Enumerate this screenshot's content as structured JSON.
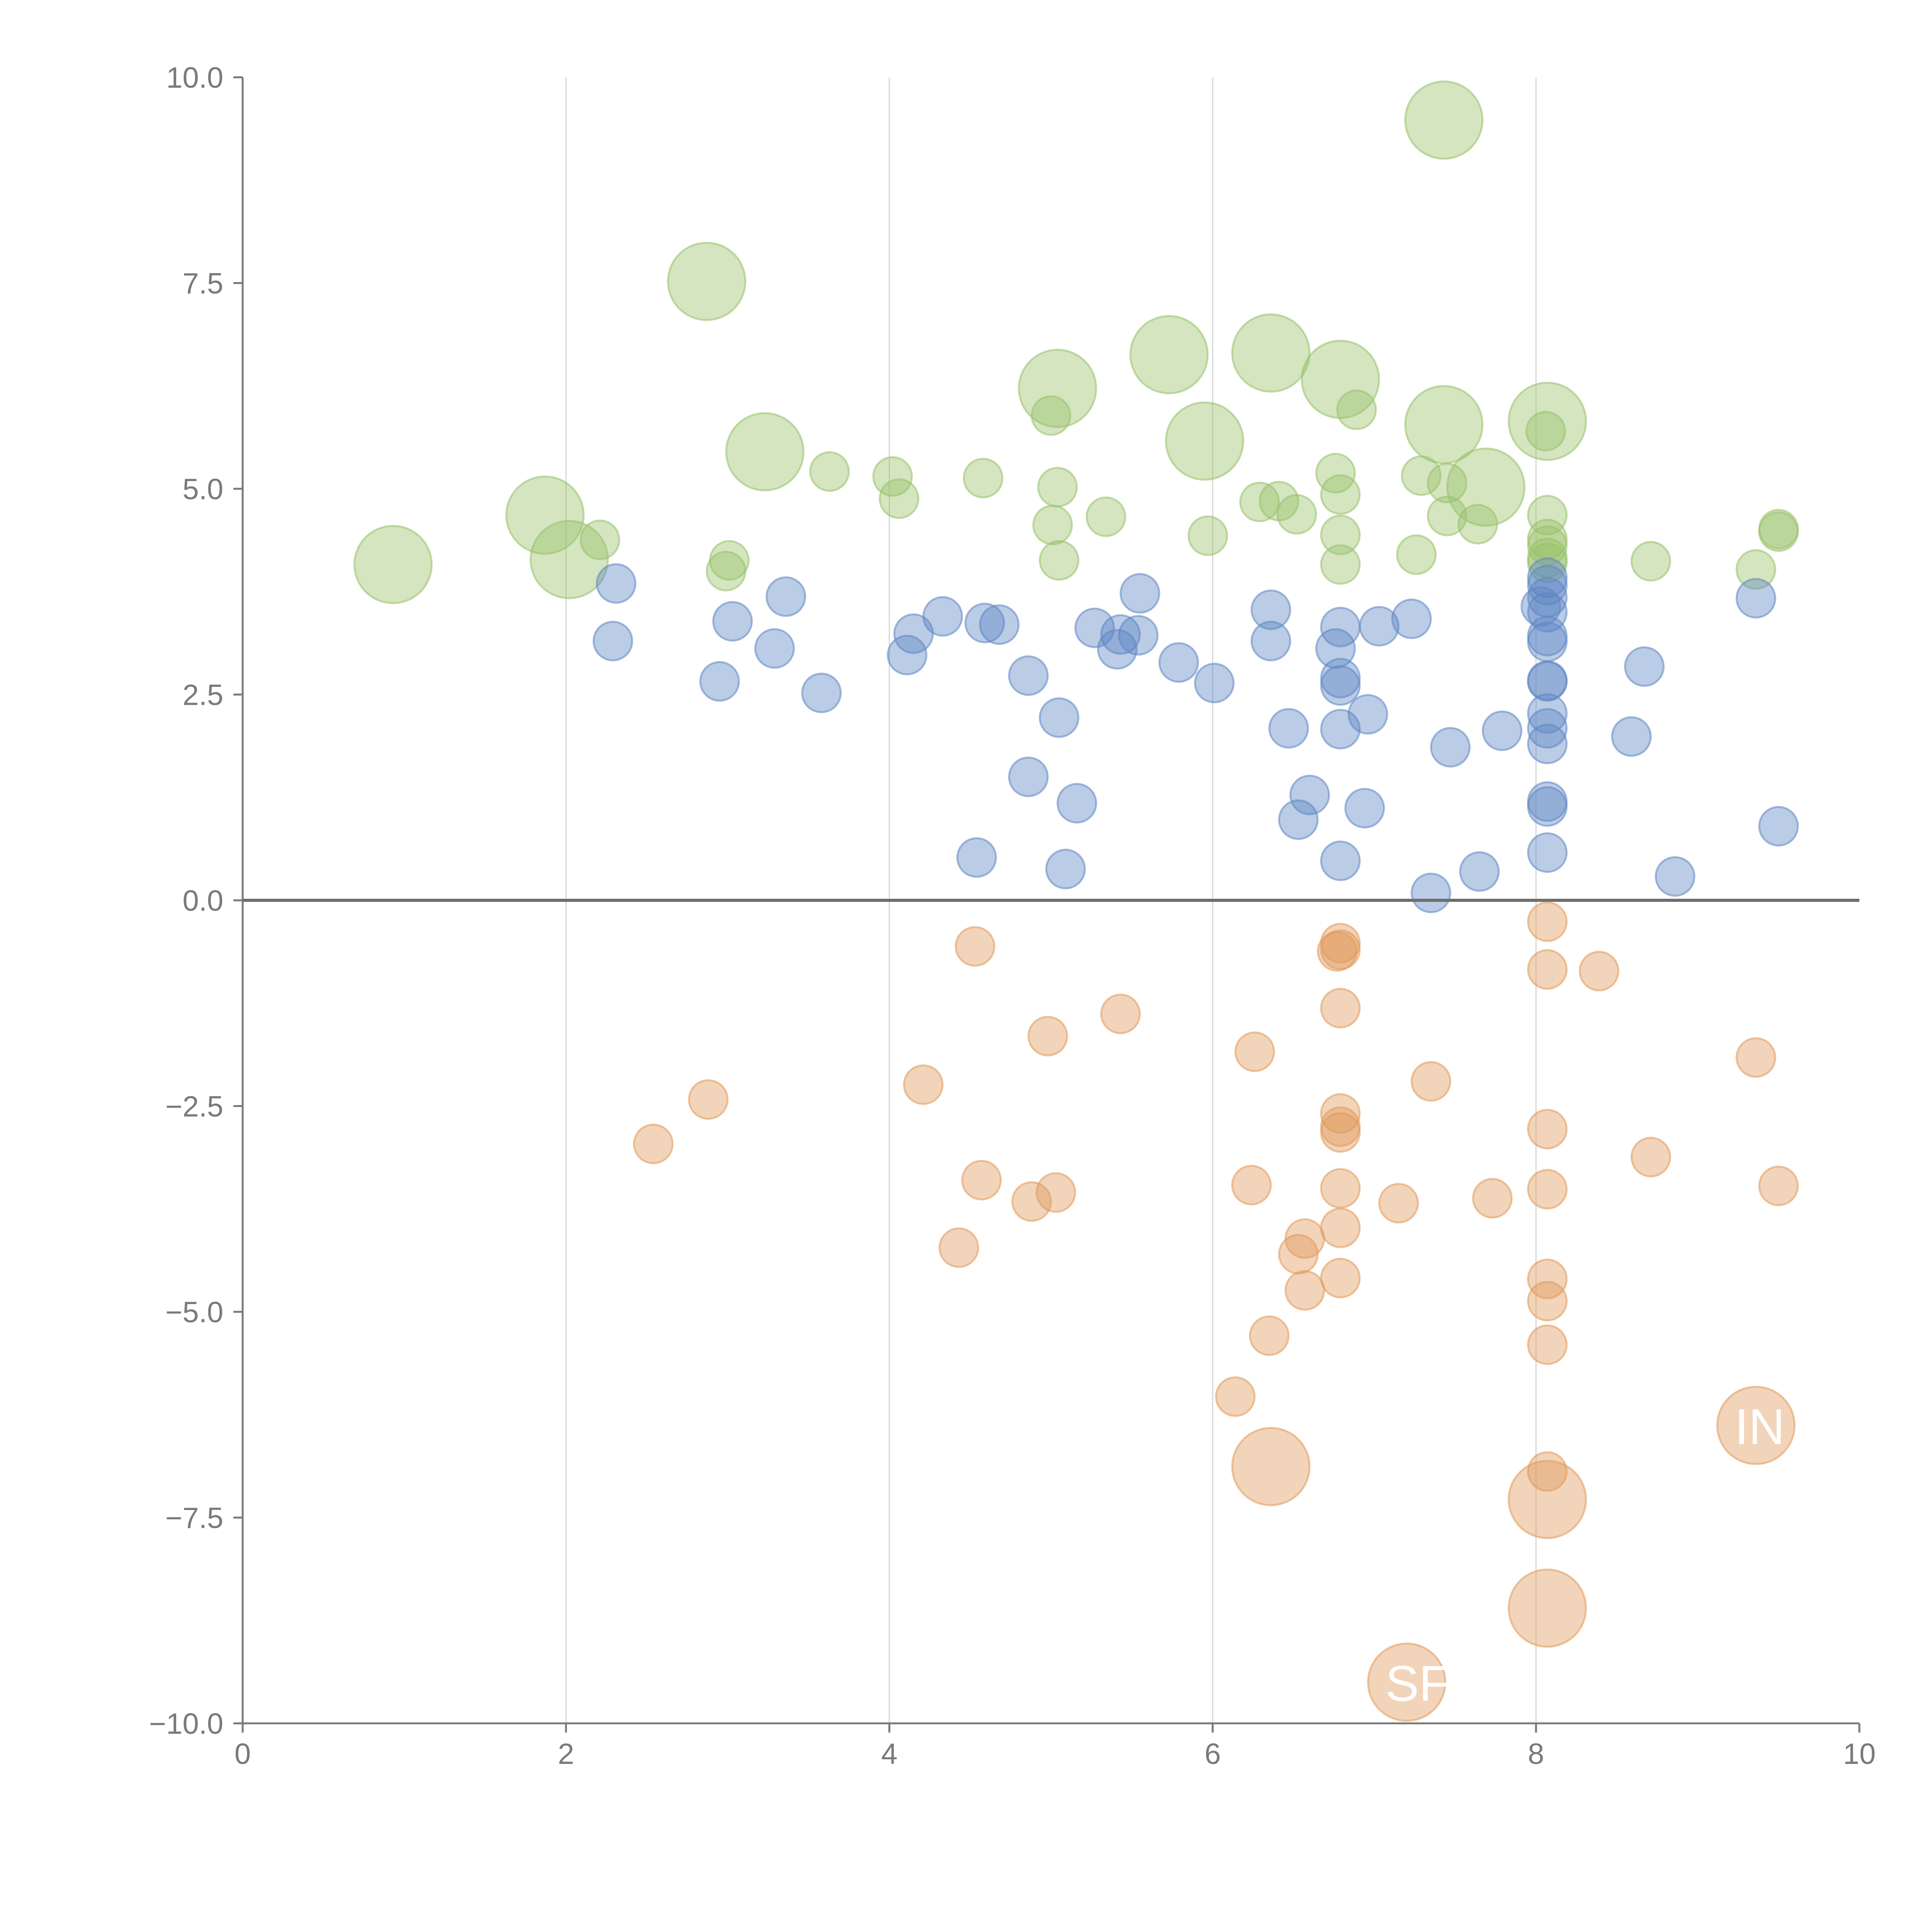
{
  "chart_data": {
    "type": "scatter",
    "title": "",
    "xlabel": "",
    "ylabel": "",
    "xlim": [
      0,
      10
    ],
    "ylim": [
      -10,
      10
    ],
    "x_ticks": [
      "0",
      "2",
      "4",
      "6",
      "8",
      "10"
    ],
    "y_ticks": [
      "10.0",
      "7.5",
      "5.0",
      "2.5",
      "0.0",
      "−2.5",
      "−5.0",
      "−7.5",
      "−10.0"
    ],
    "grid": "vertical",
    "colors": {
      "green": "#98c16a",
      "blue": "#5e86c3",
      "orange": "#e1995a",
      "axis": "#7a7a7a",
      "zero_line": "#6e6e6e",
      "grid": "#d6d6d6"
    },
    "series": [
      {
        "name": "green",
        "points": [
          {
            "x": 0.93,
            "y": 4.08,
            "s": "big"
          },
          {
            "x": 1.87,
            "y": 4.68,
            "s": "big"
          },
          {
            "x": 2.02,
            "y": 4.14,
            "s": "big"
          },
          {
            "x": 2.87,
            "y": 7.52,
            "s": "big"
          },
          {
            "x": 3.23,
            "y": 5.45,
            "s": "big"
          },
          {
            "x": 5.04,
            "y": 6.22,
            "s": "big"
          },
          {
            "x": 5.73,
            "y": 6.63,
            "s": "big"
          },
          {
            "x": 5.95,
            "y": 5.58,
            "s": "big"
          },
          {
            "x": 6.36,
            "y": 6.65,
            "s": "big"
          },
          {
            "x": 6.79,
            "y": 6.33,
            "s": "big"
          },
          {
            "x": 7.43,
            "y": 9.48,
            "s": "big"
          },
          {
            "x": 7.43,
            "y": 5.78,
            "s": "big"
          },
          {
            "x": 7.69,
            "y": 5.02,
            "s": "big"
          },
          {
            "x": 8.07,
            "y": 5.82,
            "s": "big"
          },
          {
            "x": 2.21,
            "y": 4.38
          },
          {
            "x": 2.99,
            "y": 4.0
          },
          {
            "x": 3.01,
            "y": 4.13
          },
          {
            "x": 3.63,
            "y": 5.21
          },
          {
            "x": 4.02,
            "y": 5.15
          },
          {
            "x": 4.06,
            "y": 4.88
          },
          {
            "x": 4.58,
            "y": 5.13
          },
          {
            "x": 5.0,
            "y": 5.89
          },
          {
            "x": 5.04,
            "y": 5.02
          },
          {
            "x": 5.01,
            "y": 4.56
          },
          {
            "x": 5.05,
            "y": 4.13
          },
          {
            "x": 5.34,
            "y": 4.66
          },
          {
            "x": 5.97,
            "y": 4.43
          },
          {
            "x": 6.29,
            "y": 4.84
          },
          {
            "x": 6.41,
            "y": 4.85
          },
          {
            "x": 6.52,
            "y": 4.69
          },
          {
            "x": 6.76,
            "y": 5.19
          },
          {
            "x": 6.79,
            "y": 4.93
          },
          {
            "x": 6.79,
            "y": 4.44
          },
          {
            "x": 6.79,
            "y": 4.08
          },
          {
            "x": 6.89,
            "y": 5.96
          },
          {
            "x": 7.26,
            "y": 4.2
          },
          {
            "x": 7.29,
            "y": 5.16
          },
          {
            "x": 7.45,
            "y": 4.67
          },
          {
            "x": 7.45,
            "y": 5.07
          },
          {
            "x": 7.64,
            "y": 4.57
          },
          {
            "x": 8.06,
            "y": 5.7
          },
          {
            "x": 8.07,
            "y": 4.68
          },
          {
            "x": 8.07,
            "y": 4.39
          },
          {
            "x": 8.07,
            "y": 4.31
          },
          {
            "x": 8.07,
            "y": 4.16
          },
          {
            "x": 8.07,
            "y": 4.1
          },
          {
            "x": 8.71,
            "y": 4.12
          },
          {
            "x": 9.36,
            "y": 4.02
          },
          {
            "x": 9.5,
            "y": 4.48
          },
          {
            "x": 9.5,
            "y": 4.51
          }
        ]
      },
      {
        "name": "blue",
        "points": [
          {
            "x": 2.29,
            "y": 3.15
          },
          {
            "x": 2.31,
            "y": 3.85
          },
          {
            "x": 2.95,
            "y": 2.66
          },
          {
            "x": 3.03,
            "y": 3.39
          },
          {
            "x": 3.29,
            "y": 3.06
          },
          {
            "x": 3.36,
            "y": 3.69
          },
          {
            "x": 3.58,
            "y": 2.52
          },
          {
            "x": 4.11,
            "y": 2.98
          },
          {
            "x": 4.15,
            "y": 3.24
          },
          {
            "x": 4.33,
            "y": 3.45
          },
          {
            "x": 4.54,
            "y": 0.52
          },
          {
            "x": 4.59,
            "y": 3.37
          },
          {
            "x": 4.68,
            "y": 3.35
          },
          {
            "x": 4.86,
            "y": 2.73
          },
          {
            "x": 4.86,
            "y": 1.5
          },
          {
            "x": 5.05,
            "y": 2.22
          },
          {
            "x": 5.09,
            "y": 0.38
          },
          {
            "x": 5.16,
            "y": 1.18
          },
          {
            "x": 5.27,
            "y": 3.31
          },
          {
            "x": 5.41,
            "y": 3.05
          },
          {
            "x": 5.43,
            "y": 3.23
          },
          {
            "x": 5.54,
            "y": 3.22
          },
          {
            "x": 5.55,
            "y": 3.73
          },
          {
            "x": 5.79,
            "y": 2.89
          },
          {
            "x": 6.01,
            "y": 2.64
          },
          {
            "x": 6.36,
            "y": 3.53
          },
          {
            "x": 6.36,
            "y": 3.15
          },
          {
            "x": 6.47,
            "y": 2.09
          },
          {
            "x": 6.53,
            "y": 0.98
          },
          {
            "x": 6.6,
            "y": 1.28
          },
          {
            "x": 6.76,
            "y": 3.06
          },
          {
            "x": 6.79,
            "y": 3.32
          },
          {
            "x": 6.79,
            "y": 2.7
          },
          {
            "x": 6.79,
            "y": 2.61
          },
          {
            "x": 6.79,
            "y": 2.08
          },
          {
            "x": 6.79,
            "y": 0.48
          },
          {
            "x": 6.94,
            "y": 1.12
          },
          {
            "x": 6.96,
            "y": 2.26
          },
          {
            "x": 7.03,
            "y": 3.33
          },
          {
            "x": 7.23,
            "y": 3.42
          },
          {
            "x": 7.35,
            "y": 0.09
          },
          {
            "x": 7.47,
            "y": 1.86
          },
          {
            "x": 7.65,
            "y": 0.35
          },
          {
            "x": 7.79,
            "y": 2.06
          },
          {
            "x": 8.07,
            "y": 3.92
          },
          {
            "x": 8.07,
            "y": 3.83
          },
          {
            "x": 8.07,
            "y": 3.68
          },
          {
            "x": 8.03,
            "y": 3.57
          },
          {
            "x": 8.07,
            "y": 3.5
          },
          {
            "x": 8.07,
            "y": 3.21
          },
          {
            "x": 8.07,
            "y": 3.14
          },
          {
            "x": 8.07,
            "y": 2.67
          },
          {
            "x": 8.07,
            "y": 2.66
          },
          {
            "x": 8.07,
            "y": 2.27
          },
          {
            "x": 8.07,
            "y": 2.09
          },
          {
            "x": 8.07,
            "y": 1.9
          },
          {
            "x": 8.07,
            "y": 1.2
          },
          {
            "x": 8.07,
            "y": 1.14
          },
          {
            "x": 8.07,
            "y": 0.58
          },
          {
            "x": 8.59,
            "y": 1.99
          },
          {
            "x": 8.67,
            "y": 2.84
          },
          {
            "x": 8.86,
            "y": 0.29
          },
          {
            "x": 9.36,
            "y": 3.67
          },
          {
            "x": 9.5,
            "y": 0.9
          }
        ]
      },
      {
        "name": "orange",
        "points": [
          {
            "x": 2.54,
            "y": -2.96
          },
          {
            "x": 2.88,
            "y": -2.42
          },
          {
            "x": 4.21,
            "y": -2.24
          },
          {
            "x": 4.43,
            "y": -4.22
          },
          {
            "x": 4.53,
            "y": -0.56
          },
          {
            "x": 4.57,
            "y": -3.4
          },
          {
            "x": 4.88,
            "y": -3.66
          },
          {
            "x": 4.98,
            "y": -1.65
          },
          {
            "x": 5.03,
            "y": -3.55
          },
          {
            "x": 5.43,
            "y": -1.38
          },
          {
            "x": 6.14,
            "y": -6.03
          },
          {
            "x": 6.24,
            "y": -3.46
          },
          {
            "x": 6.26,
            "y": -1.84
          },
          {
            "x": 6.35,
            "y": -5.29
          },
          {
            "x": 6.53,
            "y": -4.3
          },
          {
            "x": 6.57,
            "y": -4.11
          },
          {
            "x": 6.57,
            "y": -4.74
          },
          {
            "x": 6.79,
            "y": -0.52
          },
          {
            "x": 6.77,
            "y": -0.62
          },
          {
            "x": 6.79,
            "y": -0.6
          },
          {
            "x": 6.79,
            "y": -1.31
          },
          {
            "x": 6.79,
            "y": -2.59
          },
          {
            "x": 6.79,
            "y": -2.75
          },
          {
            "x": 6.79,
            "y": -2.82
          },
          {
            "x": 6.79,
            "y": -3.5
          },
          {
            "x": 6.79,
            "y": -3.98
          },
          {
            "x": 6.79,
            "y": -4.59
          },
          {
            "x": 7.15,
            "y": -3.68
          },
          {
            "x": 7.35,
            "y": -2.2
          },
          {
            "x": 7.73,
            "y": -3.62
          },
          {
            "x": 8.07,
            "y": -0.26
          },
          {
            "x": 8.07,
            "y": -0.84
          },
          {
            "x": 8.07,
            "y": -2.78
          },
          {
            "x": 8.07,
            "y": -3.51
          },
          {
            "x": 8.07,
            "y": -4.6
          },
          {
            "x": 8.07,
            "y": -4.87
          },
          {
            "x": 8.07,
            "y": -5.4
          },
          {
            "x": 8.07,
            "y": -6.94
          },
          {
            "x": 8.39,
            "y": -0.86
          },
          {
            "x": 8.71,
            "y": -3.12
          },
          {
            "x": 9.36,
            "y": -1.91
          },
          {
            "x": 9.5,
            "y": -3.47
          },
          {
            "x": 6.36,
            "y": -6.88,
            "s": "big"
          },
          {
            "x": 8.07,
            "y": -7.28,
            "s": "big"
          },
          {
            "x": 8.07,
            "y": -8.6,
            "s": "big"
          },
          {
            "x": 7.2,
            "y": -9.5,
            "s": "big",
            "label": "SF"
          },
          {
            "x": 9.36,
            "y": -6.38,
            "s": "big",
            "label": "IN"
          }
        ]
      }
    ]
  }
}
